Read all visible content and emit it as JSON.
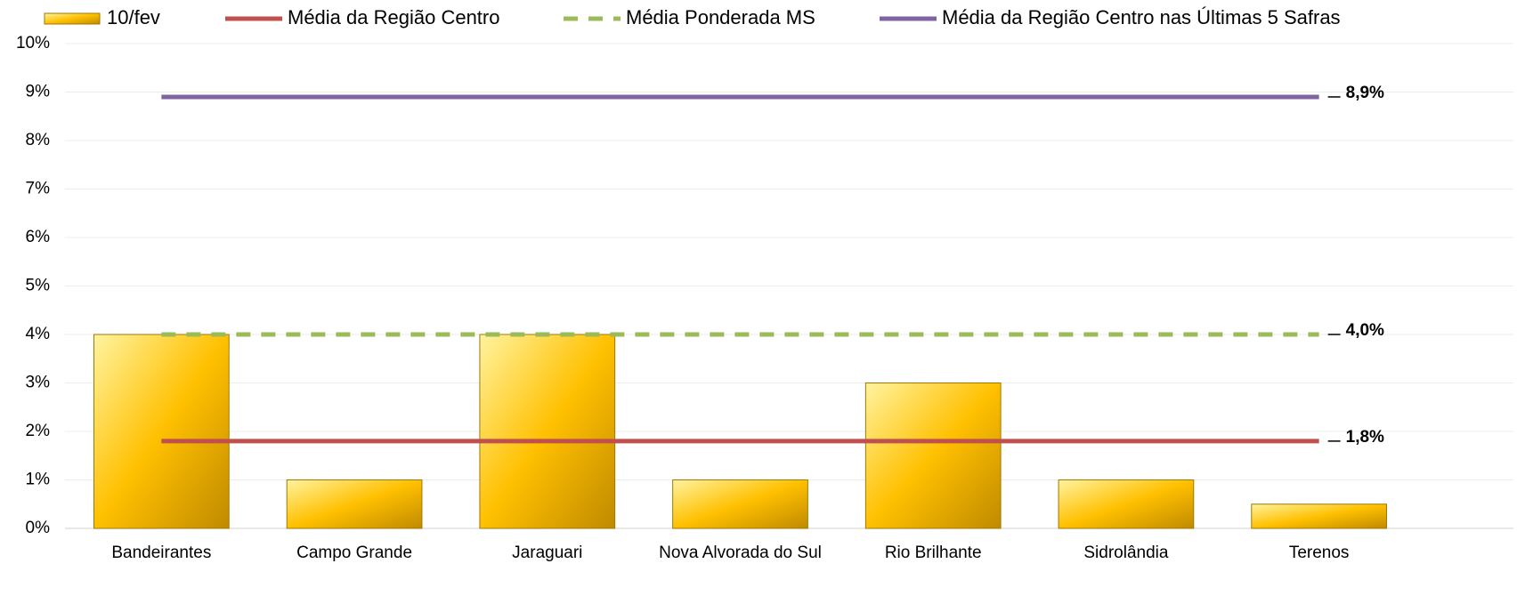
{
  "chart_data": {
    "type": "bar",
    "categories": [
      "Bandeirantes",
      "Campo Grande",
      "Jaraguari",
      "Nova Alvorada do Sul",
      "Rio Brilhante",
      "Sidrolândia",
      "Terenos"
    ],
    "series": [
      {
        "name": "10/fev",
        "type": "bar",
        "color": "#ffc000",
        "values": [
          4,
          1,
          4,
          1,
          3,
          1,
          0.5
        ]
      },
      {
        "name": "Média da Região Centro",
        "type": "line",
        "color": "#c0504d",
        "values": [
          1.8,
          1.8,
          1.8,
          1.8,
          1.8,
          1.8,
          1.8
        ],
        "value_labels": [
          null,
          null,
          null,
          null,
          null,
          null,
          "1,8%"
        ]
      },
      {
        "name": "Média Ponderada MS",
        "type": "line",
        "style": "dashed",
        "color": "#9bbb59",
        "values": [
          4.0,
          4.0,
          4.0,
          4.0,
          4.0,
          4.0,
          4.0
        ],
        "value_labels": [
          null,
          null,
          null,
          null,
          null,
          null,
          "4,0%"
        ]
      },
      {
        "name": "Média da Região Centro nas Últimas 5 Safras",
        "type": "line",
        "color": "#8064a2",
        "values": [
          8.9,
          8.9,
          8.9,
          8.9,
          8.9,
          8.9,
          8.9
        ],
        "value_labels": [
          null,
          null,
          null,
          null,
          null,
          null,
          "8,9%"
        ]
      }
    ],
    "ylim": [
      0,
      10
    ],
    "yticks": [
      {
        "value": 0,
        "label": "0%"
      },
      {
        "value": 1,
        "label": "1%"
      },
      {
        "value": 2,
        "label": "2%"
      },
      {
        "value": 3,
        "label": "3%"
      },
      {
        "value": 4,
        "label": "4%"
      },
      {
        "value": 5,
        "label": "5%"
      },
      {
        "value": 6,
        "label": "6%"
      },
      {
        "value": 7,
        "label": "7%"
      },
      {
        "value": 8,
        "label": "8%"
      },
      {
        "value": 9,
        "label": "9%"
      },
      {
        "value": 10,
        "label": "10%"
      }
    ],
    "grid": true,
    "legend": "top"
  }
}
